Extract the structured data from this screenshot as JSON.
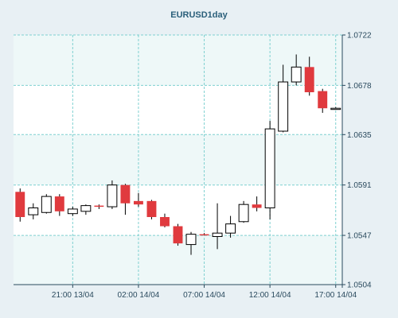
{
  "chart_data": {
    "type": "candlestick",
    "title": "EURUSD1day",
    "xlabel": "",
    "ylabel": "",
    "ylim": [
      1.0504,
      1.0722
    ],
    "y_ticks": [
      "1.0722",
      "1.0678",
      "1.0635",
      "1.0591",
      "1.0547",
      "1.0504"
    ],
    "x_ticks": [
      "21:00 13/04",
      "02:00 14/04",
      "07:00 14/04",
      "12:00 14/04",
      "17:00 14/04"
    ],
    "x_tick_positions": [
      4.5,
      9.5,
      14.5,
      19.5,
      24.5
    ],
    "grid": true,
    "colors": {
      "bull_fill": "#ffffff",
      "bear_fill": "#e03a3e",
      "outline": "#000000",
      "grid": "#7fd0d0",
      "alt_band": "#eef8f8"
    },
    "candles": [
      {
        "o": 1.0585,
        "h": 1.0588,
        "l": 1.0559,
        "c": 1.0563
      },
      {
        "o": 1.0565,
        "h": 1.0575,
        "l": 1.0561,
        "c": 1.0571
      },
      {
        "o": 1.0567,
        "h": 1.0583,
        "l": 1.0566,
        "c": 1.0581
      },
      {
        "o": 1.0581,
        "h": 1.0583,
        "l": 1.0564,
        "c": 1.0568
      },
      {
        "o": 1.0566,
        "h": 1.0572,
        "l": 1.0564,
        "c": 1.057
      },
      {
        "o": 1.0568,
        "h": 1.0574,
        "l": 1.0565,
        "c": 1.0573
      },
      {
        "o": 1.0573,
        "h": 1.0574,
        "l": 1.057,
        "c": 1.0572
      },
      {
        "o": 1.0572,
        "h": 1.0595,
        "l": 1.057,
        "c": 1.0591
      },
      {
        "o": 1.0591,
        "h": 1.0592,
        "l": 1.0565,
        "c": 1.0575
      },
      {
        "o": 1.0577,
        "h": 1.0584,
        "l": 1.0572,
        "c": 1.0574
      },
      {
        "o": 1.0577,
        "h": 1.0578,
        "l": 1.0561,
        "c": 1.0563
      },
      {
        "o": 1.0563,
        "h": 1.0566,
        "l": 1.0554,
        "c": 1.0555
      },
      {
        "o": 1.0555,
        "h": 1.0557,
        "l": 1.0538,
        "c": 1.054
      },
      {
        "o": 1.0539,
        "h": 1.055,
        "l": 1.053,
        "c": 1.0548
      },
      {
        "o": 1.0548,
        "h": 1.0549,
        "l": 1.0547,
        "c": 1.0547
      },
      {
        "o": 1.0546,
        "h": 1.0575,
        "l": 1.0535,
        "c": 1.0549
      },
      {
        "o": 1.0549,
        "h": 1.0564,
        "l": 1.0545,
        "c": 1.0557
      },
      {
        "o": 1.0559,
        "h": 1.0577,
        "l": 1.0558,
        "c": 1.0574
      },
      {
        "o": 1.0574,
        "h": 1.0581,
        "l": 1.0568,
        "c": 1.0571
      },
      {
        "o": 1.0571,
        "h": 1.0647,
        "l": 1.0561,
        "c": 1.064
      },
      {
        "o": 1.0638,
        "h": 1.0696,
        "l": 1.0637,
        "c": 1.0681
      },
      {
        "o": 1.0681,
        "h": 1.0705,
        "l": 1.0678,
        "c": 1.0694
      },
      {
        "o": 1.0694,
        "h": 1.0703,
        "l": 1.0669,
        "c": 1.0672
      },
      {
        "o": 1.0673,
        "h": 1.0675,
        "l": 1.0654,
        "c": 1.0658
      },
      {
        "o": 1.0658,
        "h": 1.0659,
        "l": 1.0657,
        "c": 1.0658
      }
    ]
  }
}
